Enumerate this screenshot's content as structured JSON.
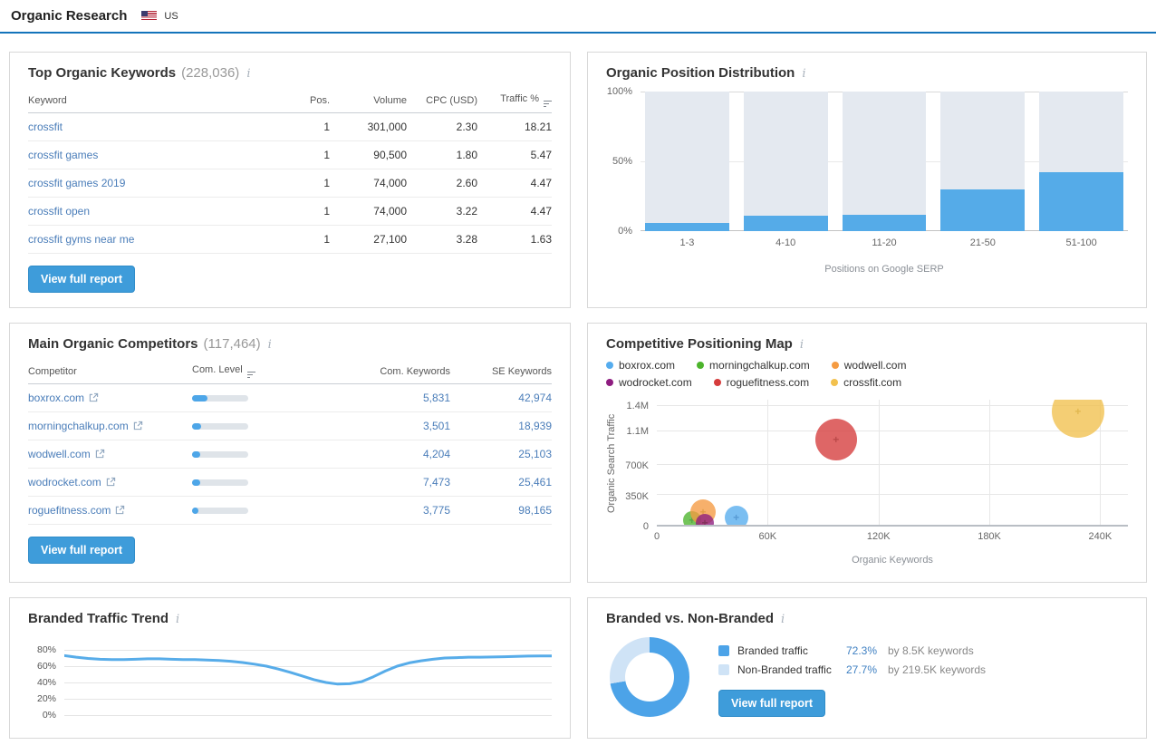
{
  "header": {
    "title": "Organic Research",
    "country": "US"
  },
  "panels": {
    "top_keywords": {
      "title": "Top Organic Keywords",
      "count": "(228,036)",
      "columns": {
        "keyword": "Keyword",
        "pos": "Pos.",
        "volume": "Volume",
        "cpc": "CPC (USD)",
        "traffic": "Traffic %"
      },
      "rows": [
        {
          "keyword": "crossfit",
          "pos": "1",
          "volume": "301,000",
          "cpc": "2.30",
          "traffic": "18.21"
        },
        {
          "keyword": "crossfit games",
          "pos": "1",
          "volume": "90,500",
          "cpc": "1.80",
          "traffic": "5.47"
        },
        {
          "keyword": "crossfit games 2019",
          "pos": "1",
          "volume": "74,000",
          "cpc": "2.60",
          "traffic": "4.47"
        },
        {
          "keyword": "crossfit open",
          "pos": "1",
          "volume": "74,000",
          "cpc": "3.22",
          "traffic": "4.47"
        },
        {
          "keyword": "crossfit gyms near me",
          "pos": "1",
          "volume": "27,100",
          "cpc": "3.28",
          "traffic": "1.63"
        }
      ],
      "button": "View full report"
    },
    "competitors": {
      "title": "Main Organic Competitors",
      "count": "(117,464)",
      "columns": {
        "competitor": "Competitor",
        "level": "Com. Level",
        "com_keywords": "Com. Keywords",
        "se_keywords": "SE Keywords"
      },
      "rows": [
        {
          "domain": "boxrox.com",
          "level_pct": 28,
          "com_keywords": "5,831",
          "se_keywords": "42,974"
        },
        {
          "domain": "morningchalkup.com",
          "level_pct": 16,
          "com_keywords": "3,501",
          "se_keywords": "18,939"
        },
        {
          "domain": "wodwell.com",
          "level_pct": 15,
          "com_keywords": "4,204",
          "se_keywords": "25,103"
        },
        {
          "domain": "wodrocket.com",
          "level_pct": 14,
          "com_keywords": "7,473",
          "se_keywords": "25,461"
        },
        {
          "domain": "roguefitness.com",
          "level_pct": 11,
          "com_keywords": "3,775",
          "se_keywords": "98,165"
        }
      ],
      "button": "View full report"
    },
    "branded_split": {
      "button": "View full report"
    }
  },
  "chart_data": [
    {
      "id": "position_distribution",
      "type": "bar",
      "title": "Organic Position Distribution",
      "categories": [
        "1-3",
        "4-10",
        "11-20",
        "21-50",
        "51-100"
      ],
      "values": [
        6,
        11,
        12,
        30,
        42
      ],
      "value_unit": "% of keywords (blue portion, remainder shown as light track to 100%)",
      "xlabel": "Positions on Google SERP",
      "yticks": [
        "100%",
        "50%",
        "0%"
      ],
      "ylim": [
        0,
        100
      ],
      "bar_color": "#55abe8",
      "track_color": "#e4e9f0"
    },
    {
      "id": "competitive_positioning_map",
      "type": "scatter",
      "title": "Competitive Positioning Map",
      "xlabel": "Organic Keywords",
      "ylabel": "Organic Search Traffic",
      "xlim": [
        0,
        255000
      ],
      "ylim": [
        0,
        1470000
      ],
      "xticks": [
        {
          "v": 0,
          "label": "0"
        },
        {
          "v": 60000,
          "label": "60K"
        },
        {
          "v": 120000,
          "label": "120K"
        },
        {
          "v": 180000,
          "label": "180K"
        },
        {
          "v": 240000,
          "label": "240K"
        }
      ],
      "yticks": [
        {
          "v": 0,
          "label": "0"
        },
        {
          "v": 350000,
          "label": "350K"
        },
        {
          "v": 700000,
          "label": "700K"
        },
        {
          "v": 1100000,
          "label": "1.1M"
        },
        {
          "v": 1400000,
          "label": "1.4M"
        }
      ],
      "series": [
        {
          "name": "boxrox.com",
          "color": "#55acee",
          "marker": "#2a7fc9",
          "x": 43000,
          "y": 90000,
          "r": 13
        },
        {
          "name": "morningchalkup.com",
          "color": "#4cb42c",
          "marker": "#2d8a12",
          "x": 19000,
          "y": 55000,
          "r": 10
        },
        {
          "name": "wodwell.com",
          "color": "#f59b42",
          "marker": "#d97f16",
          "x": 25000,
          "y": 150000,
          "r": 14
        },
        {
          "name": "wodrocket.com",
          "color": "#8e1d80",
          "marker": "#5f0e55",
          "x": 26000,
          "y": 25000,
          "r": 10
        },
        {
          "name": "roguefitness.com",
          "color": "#d63c3c",
          "marker": "#a81717",
          "x": 97000,
          "y": 1000000,
          "r": 23
        },
        {
          "name": "crossfit.com",
          "color": "#f2c14e",
          "marker": "#d9a520",
          "x": 228000,
          "y": 1330000,
          "r": 29
        }
      ]
    },
    {
      "id": "branded_traffic_trend",
      "type": "line",
      "title": "Branded Traffic Trend",
      "yticks": [
        "80%",
        "60%",
        "40%",
        "20%",
        "0%"
      ],
      "ytick_values": [
        80,
        60,
        40,
        20,
        0
      ],
      "ylim": [
        0,
        88
      ],
      "line_color": "#57ace9",
      "values": [
        73,
        71,
        69.5,
        68.5,
        68,
        68,
        68.5,
        69,
        69,
        68.5,
        68,
        68,
        67.5,
        67,
        66,
        64.5,
        62.5,
        60,
        56.5,
        52.5,
        48,
        43.5,
        40,
        38,
        38.5,
        41,
        47,
        54,
        60,
        64,
        66.5,
        68.5,
        70,
        70.5,
        71,
        71,
        71.2,
        71.5,
        72,
        72.3,
        72.5,
        72.5
      ]
    },
    {
      "id": "branded_vs_non_branded",
      "type": "pie",
      "title": "Branded vs. Non-Branded",
      "slices": [
        {
          "label": "Branded traffic",
          "pct": 72.3,
          "pct_label": "72.3%",
          "detail": "by 8.5K keywords",
          "color": "#4ca3e8"
        },
        {
          "label": "Non-Branded traffic",
          "pct": 27.7,
          "pct_label": "27.7%",
          "detail": "by 219.5K keywords",
          "color": "#cfe3f6"
        }
      ]
    }
  ]
}
